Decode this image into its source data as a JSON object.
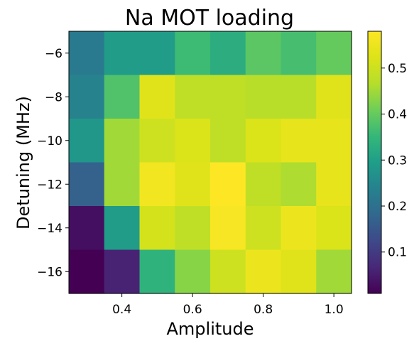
{
  "chart_data": {
    "type": "heatmap",
    "title": "Na MOT loading",
    "xlabel": "Amplitude",
    "ylabel": "Detuning (MHz)",
    "x": [
      0.3,
      0.4,
      0.5,
      0.6,
      0.7,
      0.8,
      0.9,
      1.0
    ],
    "y": [
      -6,
      -8,
      -10,
      -12,
      -14,
      -16
    ],
    "xlim": [
      0.25,
      1.05
    ],
    "ylim": [
      -17,
      -5
    ],
    "xticks": [
      "0.4",
      "0.6",
      "0.8",
      "1.0"
    ],
    "yticks": [
      "−6",
      "−8",
      "−10",
      "−12",
      "−14",
      "−16"
    ],
    "values": [
      [
        0.22,
        0.29,
        0.29,
        0.36,
        0.33,
        0.39,
        0.37,
        0.4
      ],
      [
        0.24,
        0.38,
        0.53,
        0.48,
        0.48,
        0.47,
        0.47,
        0.53
      ],
      [
        0.28,
        0.45,
        0.5,
        0.52,
        0.48,
        0.52,
        0.54,
        0.54
      ],
      [
        0.17,
        0.45,
        0.56,
        0.53,
        0.58,
        0.48,
        0.46,
        0.54
      ],
      [
        0.03,
        0.29,
        0.51,
        0.48,
        0.57,
        0.5,
        0.55,
        0.52
      ],
      [
        0.01,
        0.06,
        0.34,
        0.43,
        0.5,
        0.55,
        0.53,
        0.45
      ]
    ],
    "colorbar": {
      "colormap": "viridis",
      "vmin": 0.01,
      "vmax": 0.58,
      "ticks": [
        0.1,
        0.2,
        0.3,
        0.4,
        0.5
      ],
      "ticklabels": [
        "0.1",
        "0.2",
        "0.3",
        "0.4",
        "0.5"
      ]
    },
    "grid": false,
    "legend": "none"
  }
}
